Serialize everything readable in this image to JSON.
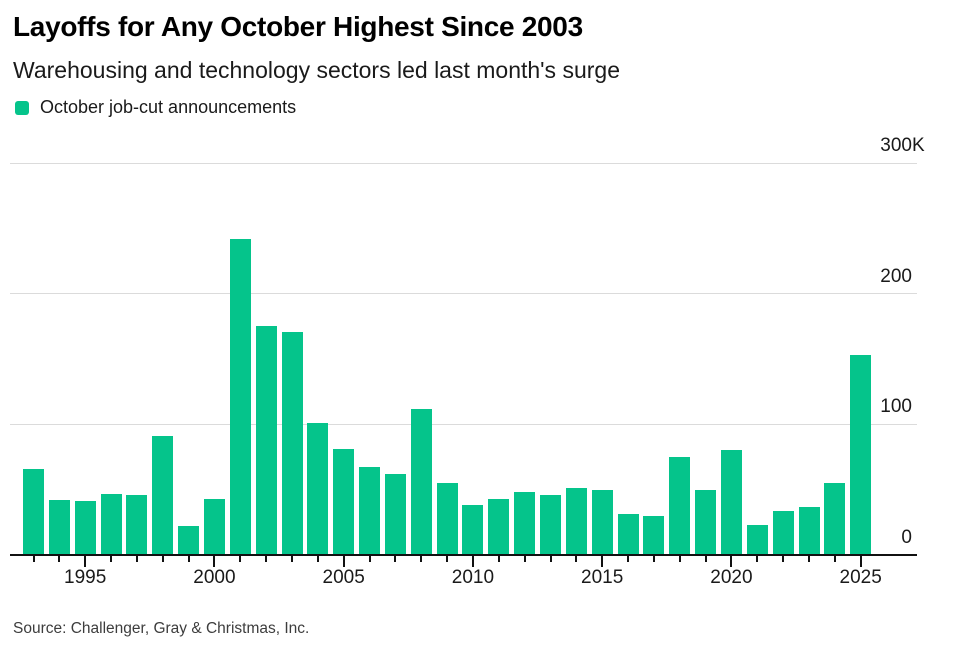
{
  "header": {
    "title": "Layoffs for Any October Highest Since 2003",
    "subtitle": "Warehousing and technology sectors led last month's surge"
  },
  "legend": {
    "label": "October job-cut announcements"
  },
  "source": "Source: Challenger, Gray & Christmas, Inc.",
  "colors": {
    "bar_green": "#05c48b",
    "gridline": "#dbdbdb",
    "axis": "#111111",
    "text": "#1a1a1a"
  },
  "chart_data": {
    "type": "bar",
    "title": "Layoffs for Any October Highest Since 2003",
    "subtitle": "Warehousing and technology sectors led last month's surge",
    "unit": "thousands of announced job cuts",
    "x": [
      1993,
      1994,
      1995,
      1996,
      1997,
      1998,
      1999,
      2000,
      2001,
      2002,
      2003,
      2004,
      2005,
      2006,
      2007,
      2008,
      2009,
      2010,
      2011,
      2012,
      2013,
      2014,
      2015,
      2016,
      2017,
      2018,
      2019,
      2020,
      2021,
      2022,
      2023,
      2024,
      2025
    ],
    "series": [
      {
        "name": "October job-cut announcements",
        "values": [
          66,
          42,
          41,
          47,
          46,
          91,
          22,
          43,
          242,
          175,
          171,
          101,
          81,
          67,
          62,
          112,
          55,
          38,
          43,
          48,
          46,
          51,
          50,
          31,
          30,
          75,
          50,
          80,
          23,
          34,
          37,
          55,
          153
        ]
      }
    ],
    "x_tick_labels": [
      "1995",
      "2000",
      "2005",
      "2010",
      "2015",
      "2020",
      "2025"
    ],
    "x_major_tick_years": [
      1995,
      2000,
      2005,
      2010,
      2015,
      2020,
      2025
    ],
    "y_ticks": [
      {
        "value": 0,
        "label": "0"
      },
      {
        "value": 100,
        "label": "100"
      },
      {
        "value": 200,
        "label": "200"
      },
      {
        "value": 300,
        "label": "300K"
      }
    ],
    "ylim": [
      0,
      300
    ],
    "xlabel": "",
    "ylabel": "",
    "grid": "horizontal",
    "legend_position": "top-left"
  }
}
